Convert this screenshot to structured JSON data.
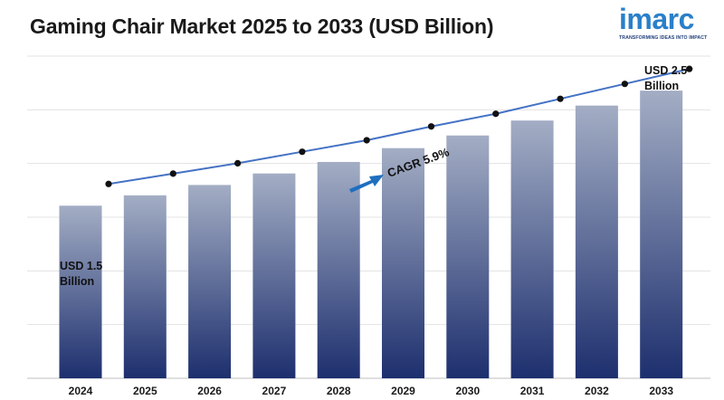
{
  "chart_data": {
    "type": "bar",
    "title": "Gaming Chair Market 2025 to 2033 (USD Billion)",
    "xlabel": "",
    "ylabel": "",
    "categories": [
      "2024",
      "2025",
      "2026",
      "2027",
      "2028",
      "2029",
      "2030",
      "2031",
      "2032",
      "2033"
    ],
    "values": [
      1.5,
      1.59,
      1.68,
      1.78,
      1.88,
      2.0,
      2.11,
      2.24,
      2.37,
      2.5
    ],
    "ylim": [
      0,
      2.8
    ],
    "grid": true,
    "legend": "none",
    "bar_gradient": [
      "#a3adc4",
      "#1d2f6e"
    ],
    "line_color": "#4472c4",
    "annotations": {
      "start_line1": "USD 1.5",
      "start_line2": "Billion",
      "end_line1": "USD 2.5",
      "end_line2": "Billion",
      "cagr": "CAGR 5.9%"
    }
  },
  "brand": {
    "name": "imarc",
    "tagline": "TRANSFORMING IDEAS INTO IMPACT",
    "color": "#2a7fc9"
  }
}
